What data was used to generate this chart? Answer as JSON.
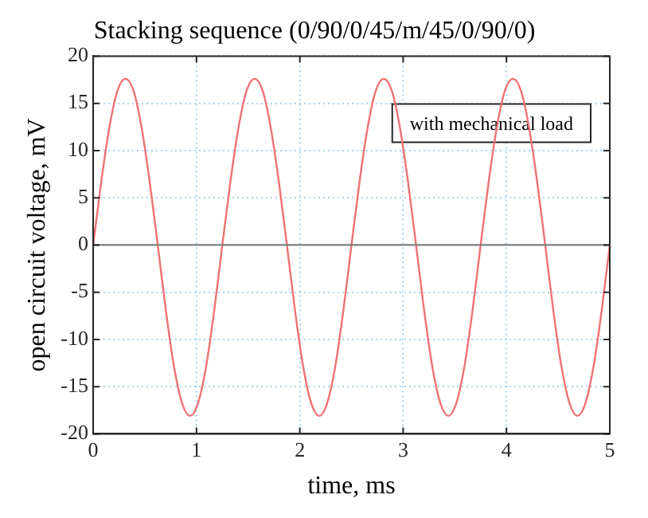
{
  "chart_data": {
    "type": "line",
    "title": "Stacking sequence (0/90/0/45/m/45/0/90/0)",
    "xlabel": "time, ms",
    "ylabel": "open circuit voltage, mV",
    "x": [
      0,
      0.078,
      0.156,
      0.234,
      0.313,
      0.391,
      0.469,
      0.547,
      0.625,
      0.703,
      0.781,
      0.859,
      0.938,
      1.016,
      1.094,
      1.172,
      1.25,
      1.328,
      1.406,
      1.484,
      1.563,
      1.641,
      1.719,
      1.797,
      1.875,
      1.953,
      2.031,
      2.109,
      2.188,
      2.266,
      2.344,
      2.422,
      2.5,
      2.578,
      2.656,
      2.734,
      2.813,
      2.891,
      2.969,
      3.047,
      3.125,
      3.203,
      3.281,
      3.359,
      3.438,
      3.516,
      3.594,
      3.672,
      3.75,
      3.828,
      3.906,
      3.984,
      4.063,
      4.141,
      4.219,
      4.297,
      4.375,
      4.453,
      4.531,
      4.609,
      4.688,
      4.766,
      4.844,
      4.922,
      5
    ],
    "series": [
      {
        "color": "#ef7272",
        "values": [
          0,
          6.7,
          12.4,
          16.3,
          17.6,
          16.3,
          12.4,
          6.7,
          0,
          -6.9,
          -12.8,
          -16.7,
          -18.1,
          -16.7,
          -12.8,
          -6.9,
          0,
          6.7,
          12.4,
          16.3,
          17.6,
          16.3,
          12.4,
          6.7,
          0,
          -6.9,
          -12.8,
          -16.7,
          -18.1,
          -16.7,
          -12.8,
          -6.9,
          0,
          6.7,
          12.4,
          16.3,
          17.6,
          16.3,
          12.4,
          6.7,
          0,
          -6.9,
          -12.8,
          -16.7,
          -18.1,
          -16.7,
          -12.8,
          -6.9,
          0,
          6.7,
          12.4,
          16.3,
          17.6,
          16.3,
          12.4,
          6.7,
          0,
          -6.9,
          -12.8,
          -16.7,
          -18.1,
          -16.7,
          -12.8,
          -6.9,
          0
        ]
      }
    ],
    "xlim": [
      0,
      5
    ],
    "xticks": [
      0,
      1,
      2,
      3,
      4,
      5
    ],
    "ylim": [
      -20,
      20
    ],
    "yticks": [
      -20,
      -15,
      -10,
      -5,
      0,
      5,
      10,
      15,
      20
    ],
    "ref_lines": [
      {
        "axis": "y",
        "value": 0,
        "color": "#808080"
      }
    ],
    "annotations": [
      "with mechanical load"
    ],
    "grid": true,
    "legend": false,
    "marker": "none",
    "line_style": "solid"
  }
}
